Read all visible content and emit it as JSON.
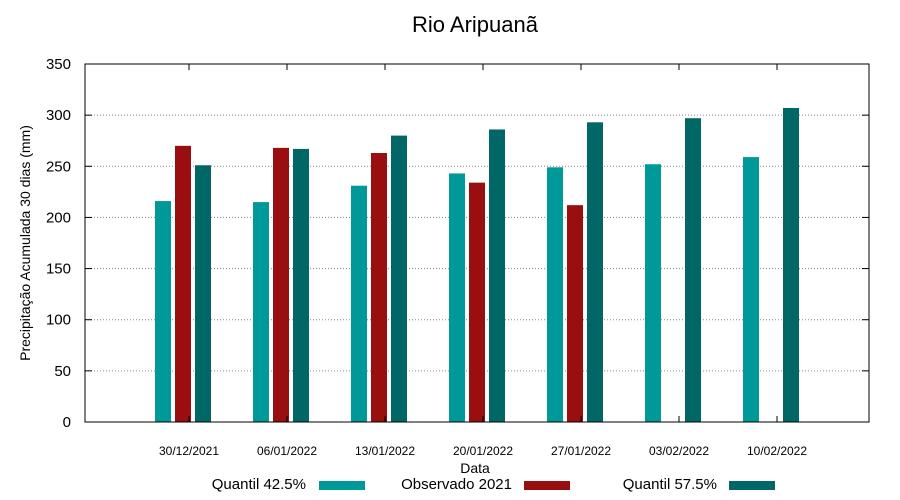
{
  "chart_data": {
    "type": "bar",
    "title": "Rio Aripuanã",
    "xlabel": "Data",
    "ylabel": "Precipitação Acumulada 30 dias (mm)",
    "ylim": [
      0,
      350
    ],
    "yticks": [
      0,
      50,
      100,
      150,
      200,
      250,
      300,
      350
    ],
    "grid": "horizontal dotted",
    "legend_position": "bottom",
    "categories": [
      "30/12/2021",
      "06/01/2022",
      "13/01/2022",
      "20/01/2022",
      "27/01/2022",
      "03/02/2022",
      "10/02/2022"
    ],
    "series": [
      {
        "name": "Quantil 42.5%",
        "color": "#009999",
        "values": [
          216,
          215,
          231,
          243,
          249,
          252,
          259
        ]
      },
      {
        "name": "Observado 2021",
        "color": "#990f0f",
        "values": [
          270,
          268,
          263,
          234,
          212,
          null,
          null
        ]
      },
      {
        "name": "Quantil 57.5%",
        "color": "#006666",
        "values": [
          251,
          267,
          280,
          286,
          293,
          297,
          307
        ]
      }
    ]
  }
}
